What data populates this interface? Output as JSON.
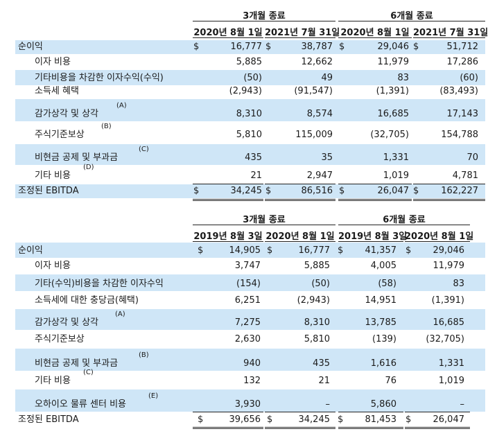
{
  "table1": {
    "group_3m": "3개월 종료",
    "group_6m": "6개월 종료",
    "col_dates": [
      "2020년 8월 1일",
      "2021년 7월 31일",
      "2020년 8월 1일",
      "2021년 7월 31일"
    ],
    "rows": [
      {
        "label": "순이익",
        "sup": "",
        "d1": "$",
        "v1": "16,777",
        "d2": "$",
        "v2": "38,787",
        "d3": "$",
        "v3": "29,046",
        "d4": "$",
        "v4": "51,712"
      },
      {
        "label": "이자 비용",
        "sup": "",
        "d1": "",
        "v1": "5,885",
        "d2": "",
        "v2": "12,662",
        "d3": "",
        "v3": "11,979",
        "d4": "",
        "v4": "17,286"
      },
      {
        "label": "기타비용을 차감한 이자수익(수익)",
        "sup": "",
        "d1": "",
        "v1": "(50)",
        "d2": "",
        "v2": "49",
        "d3": "",
        "v3": "83",
        "d4": "",
        "v4": "(60)"
      },
      {
        "label": "소득세 혜택",
        "sup": "",
        "d1": "",
        "v1": "(2,943)",
        "d2": "",
        "v2": "(91,547)",
        "d3": "",
        "v3": "(1,391)",
        "d4": "",
        "v4": "(83,493)"
      },
      {
        "label": "감가상각 및 상각",
        "sup": "(A)",
        "d1": "",
        "v1": "8,310",
        "d2": "",
        "v2": "8,574",
        "d3": "",
        "v3": "16,685",
        "d4": "",
        "v4": "17,143"
      },
      {
        "label": "주식기준보상",
        "sup": "(B)",
        "d1": "",
        "v1": "5,810",
        "d2": "",
        "v2": "115,009",
        "d3": "",
        "v3": "(32,705)",
        "d4": "",
        "v4": "154,788"
      },
      {
        "label": "비현금 공제 및 부과금",
        "sup": "(C)",
        "d1": "",
        "v1": "435",
        "d2": "",
        "v2": "35",
        "d3": "",
        "v3": "1,331",
        "d4": "",
        "v4": "70"
      },
      {
        "label": "기타 비용",
        "sup": "(D)",
        "d1": "",
        "v1": "21",
        "d2": "",
        "v2": "2,947",
        "d3": "",
        "v3": "1,019",
        "d4": "",
        "v4": "4,781"
      },
      {
        "label": "조정된 EBITDA",
        "sup": "",
        "d1": "$",
        "v1": "34,245",
        "d2": "$",
        "v2": "86,516",
        "d3": "$",
        "v3": "26,047",
        "d4": "$",
        "v4": "162,227"
      }
    ]
  },
  "table2": {
    "group_3m": "3개월 종료",
    "group_6m": "6개월 종료",
    "col_dates": [
      "2019년 8월 3일",
      "2020년 8월 1일",
      "2019년 8월 3일",
      "2020년 8월 1일"
    ],
    "rows": [
      {
        "label": "순이익",
        "sup": "",
        "d1": "$",
        "v1": "14,905",
        "d2": "$",
        "v2": "16,777",
        "d3": "$",
        "v3": "41,357",
        "d4": "$",
        "v4": "29,046"
      },
      {
        "label": "이자 비용",
        "sup": "",
        "d1": "",
        "v1": "3,747",
        "d2": "",
        "v2": "5,885",
        "d3": "",
        "v3": "4,005",
        "d4": "",
        "v4": "11,979"
      },
      {
        "label": "기타(수익)비용을 차감한 이자수익",
        "sup": "",
        "d1": "",
        "v1": "(154)",
        "d2": "",
        "v2": "(50)",
        "d3": "",
        "v3": "(58)",
        "d4": "",
        "v4": "83"
      },
      {
        "label": "소득세에 대한 충당금(혜택)",
        "sup": "",
        "d1": "",
        "v1": "6,251",
        "d2": "",
        "v2": "(2,943)",
        "d3": "",
        "v3": "14,951",
        "d4": "",
        "v4": "(1,391)"
      },
      {
        "label": "감가상각 및 상각",
        "sup": "(A)",
        "d1": "",
        "v1": "7,275",
        "d2": "",
        "v2": "8,310",
        "d3": "",
        "v3": "13,785",
        "d4": "",
        "v4": "16,685"
      },
      {
        "label": "주식기준보상",
        "sup": "",
        "d1": "",
        "v1": "2,630",
        "d2": "",
        "v2": "5,810",
        "d3": "",
        "v3": "(139)",
        "d4": "",
        "v4": "(32,705)"
      },
      {
        "label": "비현금 공제 및 부과금",
        "sup": "(B)",
        "d1": "",
        "v1": "940",
        "d2": "",
        "v2": "435",
        "d3": "",
        "v3": "1,616",
        "d4": "",
        "v4": "1,331"
      },
      {
        "label": "기타 비용",
        "sup": "(C)",
        "d1": "",
        "v1": "132",
        "d2": "",
        "v2": "21",
        "d3": "",
        "v3": "76",
        "d4": "",
        "v4": "1,019"
      },
      {
        "label": "오하이오 물류 센터 비용",
        "sup": "(E)",
        "d1": "",
        "v1": "3,930",
        "d2": "",
        "v2": "–",
        "d3": "",
        "v3": "5,860",
        "d4": "",
        "v4": "–"
      },
      {
        "label": "조정된 EBITDA",
        "sup": "",
        "d1": "$",
        "v1": "39,656",
        "d2": "$",
        "v2": "34,245",
        "d3": "$",
        "v3": "81,453",
        "d4": "$",
        "v4": "26,047"
      }
    ]
  },
  "colors": {
    "shade": "#cfe6f7",
    "text": "#1a1a1a"
  }
}
